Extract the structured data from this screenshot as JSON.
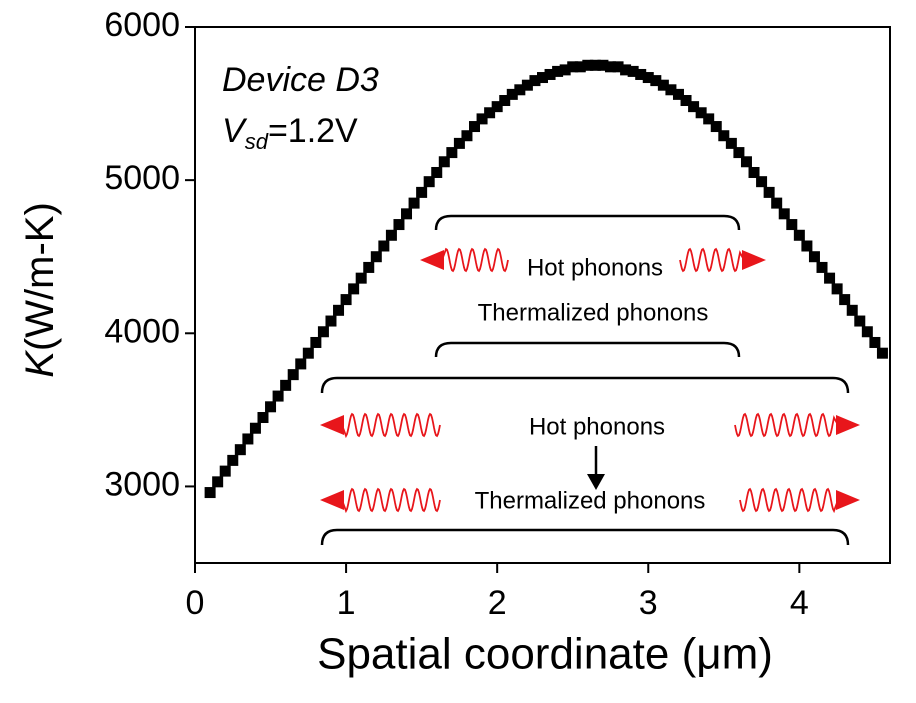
{
  "chart_data": {
    "type": "scatter",
    "ylabel": {
      "symbol": "K",
      "unit": "(W/m-K)"
    },
    "xlabel": "Spatial coordinate (μm)",
    "annotations": {
      "device": "Device D3",
      "bias": {
        "symbol": "V",
        "subscript": "sd",
        "rest": "=1.2V"
      },
      "hot_upper": "Hot phonons",
      "thermal_upper": "Thermalized phonons",
      "hot_lower": "Hot phonons",
      "thermal_lower": "Thermalized phonons"
    },
    "xlim": [
      0,
      4.6
    ],
    "xticks": [
      0,
      1,
      2,
      3,
      4
    ],
    "ylim": [
      2500,
      6000
    ],
    "yticks": [
      3000,
      4000,
      5000,
      6000
    ],
    "marker": "square",
    "color": "#000000",
    "x": [
      0.1,
      0.15,
      0.2,
      0.25,
      0.3,
      0.35,
      0.4,
      0.45,
      0.5,
      0.55,
      0.6,
      0.65,
      0.7,
      0.75,
      0.8,
      0.85,
      0.9,
      0.95,
      1.0,
      1.05,
      1.1,
      1.15,
      1.2,
      1.25,
      1.3,
      1.35,
      1.4,
      1.45,
      1.5,
      1.55,
      1.6,
      1.65,
      1.7,
      1.75,
      1.8,
      1.85,
      1.9,
      1.95,
      2.0,
      2.05,
      2.1,
      2.15,
      2.2,
      2.25,
      2.3,
      2.35,
      2.4,
      2.45,
      2.5,
      2.55,
      2.6,
      2.65,
      2.7,
      2.75,
      2.8,
      2.85,
      2.9,
      2.95,
      3.0,
      3.05,
      3.1,
      3.15,
      3.2,
      3.25,
      3.3,
      3.35,
      3.4,
      3.45,
      3.5,
      3.55,
      3.6,
      3.65,
      3.7,
      3.75,
      3.8,
      3.85,
      3.9,
      3.95,
      4.0,
      4.05,
      4.1,
      4.15,
      4.2,
      4.25,
      4.3,
      4.35,
      4.4,
      4.45,
      4.5,
      4.55
    ],
    "values": [
      2960,
      3030,
      3100,
      3170,
      3240,
      3310,
      3380,
      3450,
      3520,
      3590,
      3660,
      3730,
      3800,
      3870,
      3940,
      4010,
      4080,
      4150,
      4220,
      4290,
      4360,
      4430,
      4500,
      4570,
      4640,
      4710,
      4780,
      4850,
      4920,
      4990,
      5050,
      5120,
      5180,
      5240,
      5290,
      5350,
      5400,
      5440,
      5480,
      5520,
      5560,
      5590,
      5620,
      5650,
      5670,
      5690,
      5710,
      5720,
      5740,
      5740,
      5750,
      5750,
      5750,
      5740,
      5740,
      5720,
      5710,
      5690,
      5670,
      5650,
      5620,
      5590,
      5560,
      5520,
      5480,
      5440,
      5400,
      5350,
      5290,
      5240,
      5180,
      5120,
      5050,
      4990,
      4920,
      4850,
      4780,
      4710,
      4640,
      4570,
      4500,
      4430,
      4360,
      4290,
      4220,
      4150,
      4080,
      4010,
      3940,
      3870
    ]
  }
}
